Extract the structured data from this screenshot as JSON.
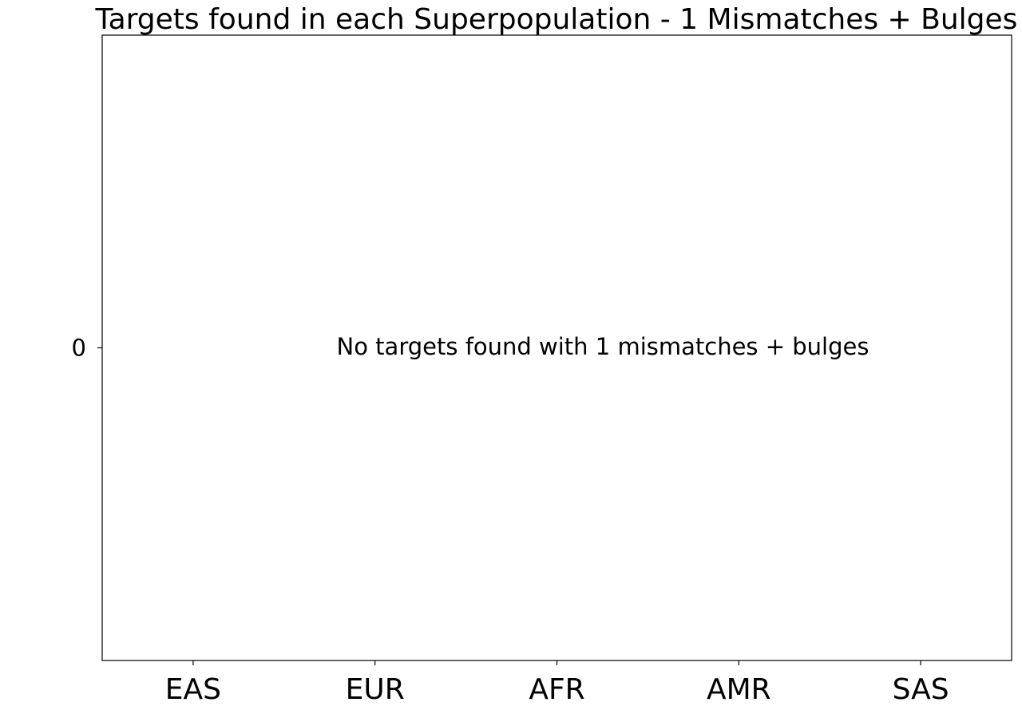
{
  "chart_data": {
    "type": "bar",
    "title": "Targets found in each Superpopulation - 1 Mismatches + Bulges",
    "xlabel": "",
    "ylabel": "",
    "categories": [
      "EAS",
      "EUR",
      "AFR",
      "AMR",
      "SAS"
    ],
    "values": [
      0,
      0,
      0,
      0,
      0
    ],
    "y_ticks": [
      0
    ],
    "ylim": [
      -1,
      1
    ],
    "grid": false,
    "legend": "none",
    "annotation": "No targets found with 1 mismatches + bulges"
  }
}
